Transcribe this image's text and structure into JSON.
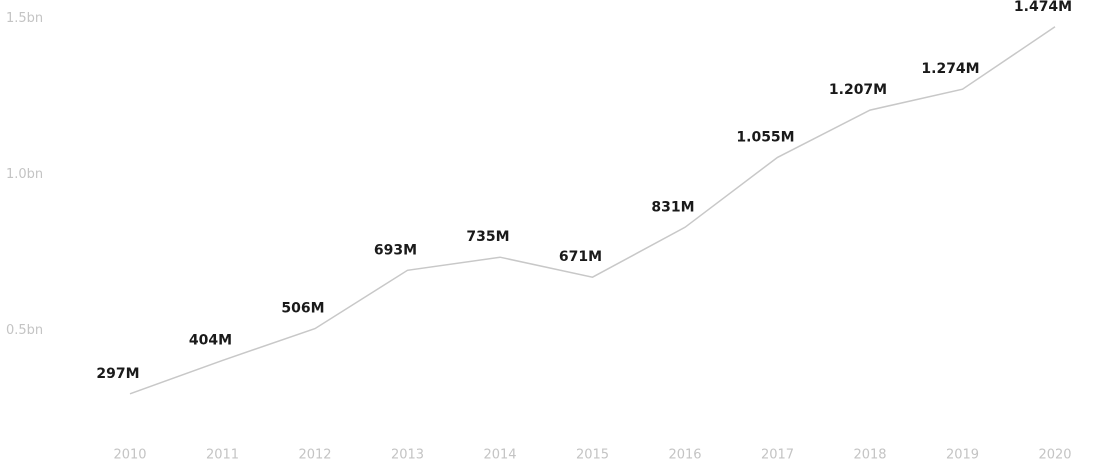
{
  "chart_data": {
    "type": "line",
    "categories": [
      "2010",
      "2011",
      "2012",
      "2013",
      "2014",
      "2015",
      "2016",
      "2017",
      "2018",
      "2019",
      "2020"
    ],
    "series": [
      {
        "color": "#c8c8c8",
        "values": [
          0.297,
          0.404,
          0.506,
          0.693,
          0.735,
          0.671,
          0.831,
          1.055,
          1.207,
          1.274,
          1.474
        ],
        "value_labels": [
          "297M",
          "404M",
          "506M",
          "693M",
          "735M",
          "671M",
          "831M",
          "1.055M",
          "1.207M",
          "1.274M",
          "1.474M"
        ]
      }
    ],
    "ylim": [
      0.2,
      1.56
    ],
    "yticks": [
      {
        "value": 0.5,
        "label": "0.5bn"
      },
      {
        "value": 1.0,
        "label": "1.0bn"
      },
      {
        "value": 1.5,
        "label": "1.5bn"
      }
    ]
  }
}
